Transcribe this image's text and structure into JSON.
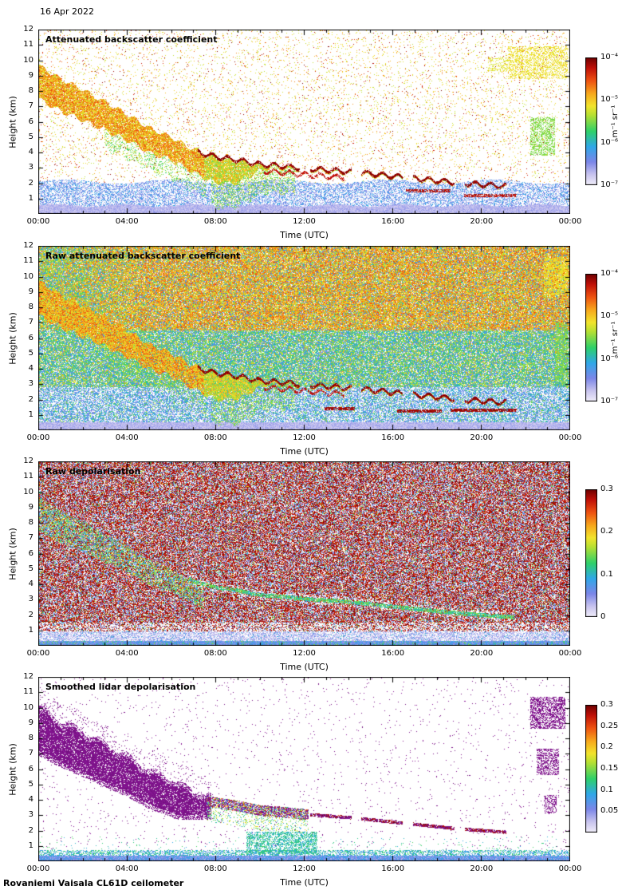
{
  "date_label": "16 Apr 2022",
  "footer": "Rovaniemi Vaisala CL61D ceilometer",
  "colors": {
    "background": "#ffffff",
    "axis": "#000000",
    "purple": "#8e169c",
    "purple_dark": "#5c0e66",
    "colormap": [
      {
        "v": 0.0,
        "c": "#efecf9"
      },
      {
        "v": 0.08,
        "c": "#c9c4ee"
      },
      {
        "v": 0.18,
        "c": "#7b86e8"
      },
      {
        "v": 0.3,
        "c": "#2fa8e8"
      },
      {
        "v": 0.42,
        "c": "#2ed06a"
      },
      {
        "v": 0.55,
        "c": "#b8e032"
      },
      {
        "v": 0.62,
        "c": "#f2e42c"
      },
      {
        "v": 0.72,
        "c": "#f7a61c"
      },
      {
        "v": 0.82,
        "c": "#ee5211"
      },
      {
        "v": 0.92,
        "c": "#c01008"
      },
      {
        "v": 1.0,
        "c": "#700000"
      }
    ]
  },
  "chart_data": [
    {
      "id": "attenuated_backscatter",
      "type": "heatmap",
      "title": "Attenuated backscatter coefficient",
      "xlabel": "Time (UTC)",
      "ylabel": "Height (km)",
      "x_ticks": [
        "00:00",
        "04:00",
        "08:00",
        "12:00",
        "16:00",
        "20:00",
        "00:00"
      ],
      "x_range_hours": [
        0,
        24
      ],
      "y_ticks": [
        1,
        2,
        3,
        4,
        5,
        6,
        7,
        8,
        9,
        10,
        11,
        12
      ],
      "y_range_km": [
        0,
        12
      ],
      "colorbar": {
        "scale": "log",
        "min": 1e-07,
        "max": 0.0001,
        "ticks": [
          {
            "value": 0.0001,
            "label": "10⁻⁴"
          },
          {
            "value": 1e-05,
            "label": "10⁻⁵"
          },
          {
            "value": 1e-06,
            "label": "10⁻⁶"
          },
          {
            "value": 1e-07,
            "label": "10⁻⁷"
          }
        ],
        "unit_label": "m⁻¹ sr⁻¹"
      },
      "features": {
        "track_t_end": 21.5,
        "cloud_top_track_km": [
          [
            0,
            9.7
          ],
          [
            1,
            8.8
          ],
          [
            2,
            8.1
          ],
          [
            3,
            7.3
          ],
          [
            4,
            6.5
          ],
          [
            5,
            5.6
          ],
          [
            6,
            5.0
          ],
          [
            7,
            4.2
          ],
          [
            8,
            3.8
          ],
          [
            9,
            3.6
          ],
          [
            10,
            3.3
          ],
          [
            11,
            3.2
          ],
          [
            12,
            3.05
          ],
          [
            13,
            2.95
          ],
          [
            14,
            2.85
          ],
          [
            15,
            2.7
          ],
          [
            16,
            2.55
          ],
          [
            17,
            2.4
          ],
          [
            18,
            2.25
          ],
          [
            19,
            2.1
          ],
          [
            20,
            2.0
          ],
          [
            21,
            1.9
          ],
          [
            21.5,
            1.85
          ]
        ],
        "cloud_thickness_km": [
          [
            0,
            2.2
          ],
          [
            2,
            2.0
          ],
          [
            4,
            1.7
          ],
          [
            6,
            1.5
          ],
          [
            7,
            1.5
          ],
          [
            8,
            1.8
          ],
          [
            9,
            1.6
          ],
          [
            9.5,
            1.0
          ],
          [
            10,
            0.45
          ],
          [
            10.5,
            0.25
          ],
          [
            24,
            0.18
          ]
        ],
        "surface_blue_layer_top_km": 2.1,
        "double_line": [
          10.2,
          13.8
        ],
        "patches": [
          {
            "t": [
              21.2,
              23.9
            ],
            "h": [
              8.8,
              10.9
            ],
            "v": 0.62,
            "p": 0.4
          },
          {
            "t": [
              20.3,
              21.2
            ],
            "h": [
              9.3,
              10.2
            ],
            "v": 0.6,
            "p": 0.3
          },
          {
            "t": [
              22.2,
              23.3
            ],
            "h": [
              3.8,
              6.3
            ],
            "v": 0.5,
            "p": 0.45
          },
          {
            "t": [
              16.6,
              18.6
            ],
            "h": [
              1.4,
              1.6
            ],
            "v": 0.93,
            "p": 0.7
          },
          {
            "t": [
              19.2,
              21.6
            ],
            "h": [
              1.1,
              1.3
            ],
            "v": 0.93,
            "p": 0.7
          }
        ]
      }
    },
    {
      "id": "raw_attenuated_backscatter",
      "type": "heatmap",
      "title": "Raw attenuated backscatter coefficient",
      "xlabel": "Time (UTC)",
      "ylabel": "Height (km)",
      "x_ticks": [
        "00:00",
        "04:00",
        "08:00",
        "12:00",
        "16:00",
        "20:00",
        "00:00"
      ],
      "x_range_hours": [
        0,
        24
      ],
      "y_ticks": [
        1,
        2,
        3,
        4,
        5,
        6,
        7,
        8,
        9,
        10,
        11,
        12
      ],
      "y_range_km": [
        0,
        12
      ],
      "colorbar": {
        "scale": "log",
        "min": 1e-07,
        "max": 0.0001,
        "ticks": [
          {
            "value": 0.0001,
            "label": "10⁻⁴"
          },
          {
            "value": 1e-05,
            "label": "10⁻⁵"
          },
          {
            "value": 1e-06,
            "label": "10⁻⁶"
          },
          {
            "value": 1e-07,
            "label": "10⁻⁷"
          }
        ],
        "unit_label": "m⁻¹ sr⁻¹"
      },
      "features": {
        "track_t_end": 21.5,
        "cloud_top_track_km": [
          [
            0,
            9.7
          ],
          [
            1,
            8.8
          ],
          [
            2,
            8.1
          ],
          [
            3,
            7.3
          ],
          [
            4,
            6.5
          ],
          [
            5,
            5.6
          ],
          [
            6,
            5.0
          ],
          [
            7,
            4.2
          ],
          [
            8,
            3.8
          ],
          [
            9,
            3.6
          ],
          [
            10,
            3.3
          ],
          [
            11,
            3.2
          ],
          [
            12,
            3.05
          ],
          [
            13,
            2.95
          ],
          [
            14,
            2.85
          ],
          [
            15,
            2.7
          ],
          [
            16,
            2.55
          ],
          [
            17,
            2.4
          ],
          [
            18,
            2.25
          ],
          [
            19,
            2.1
          ],
          [
            20,
            2.0
          ],
          [
            21,
            1.9
          ],
          [
            21.5,
            1.85
          ]
        ],
        "cloud_thickness_km": [
          [
            0,
            2.2
          ],
          [
            2,
            2.0
          ],
          [
            4,
            1.7
          ],
          [
            6,
            1.5
          ],
          [
            7,
            1.5
          ],
          [
            8,
            1.8
          ],
          [
            9,
            1.6
          ],
          [
            9.5,
            1.0
          ],
          [
            10,
            0.45
          ],
          [
            10.5,
            0.25
          ],
          [
            24,
            0.18
          ]
        ],
        "double_line": [
          10.2,
          13.8
        ],
        "patches": [
          {
            "t": [
              12.9,
              14.3
            ],
            "h": [
              1.3,
              1.5
            ],
            "v": 0.95,
            "p": 0.8
          },
          {
            "t": [
              16.2,
              18.2
            ],
            "h": [
              1.15,
              1.35
            ],
            "v": 0.95,
            "p": 0.8
          },
          {
            "t": [
              18.6,
              21.6
            ],
            "h": [
              1.2,
              1.4
            ],
            "v": 0.95,
            "p": 0.8
          },
          {
            "t": [
              23.3,
              23.9
            ],
            "h": [
              3.0,
              7.0
            ],
            "v": 0.5,
            "p": 0.5
          },
          {
            "t": [
              22.8,
              23.9
            ],
            "h": [
              8.8,
              11.2
            ],
            "v": 0.62,
            "p": 0.55
          }
        ]
      }
    },
    {
      "id": "raw_depolarisation",
      "type": "heatmap",
      "title": "Raw depolarisation",
      "xlabel": "Time (UTC)",
      "ylabel": "Height (km)",
      "x_ticks": [
        "00:00",
        "04:00",
        "08:00",
        "12:00",
        "16:00",
        "20:00",
        "00:00"
      ],
      "x_range_hours": [
        0,
        24
      ],
      "y_ticks": [
        1,
        2,
        3,
        4,
        5,
        6,
        7,
        8,
        9,
        10,
        11,
        12
      ],
      "y_range_km": [
        0,
        12
      ],
      "colorbar": {
        "scale": "linear",
        "min": 0,
        "max": 0.3,
        "ticks": [
          {
            "value": 0.3,
            "label": "0.3"
          },
          {
            "value": 0.2,
            "label": "0.2"
          },
          {
            "value": 0.1,
            "label": "0.1"
          },
          {
            "value": 0,
            "label": "0"
          }
        ]
      },
      "features": {
        "track_t_end": 21.5,
        "cloud_top_track_km": [
          [
            0,
            9.7
          ],
          [
            1,
            8.8
          ],
          [
            2,
            8.1
          ],
          [
            3,
            7.3
          ],
          [
            4,
            6.5
          ],
          [
            5,
            5.6
          ],
          [
            6,
            5.0
          ],
          [
            7,
            4.2
          ],
          [
            8,
            3.8
          ],
          [
            9,
            3.6
          ],
          [
            10,
            3.3
          ],
          [
            11,
            3.2
          ],
          [
            12,
            3.05
          ],
          [
            13,
            2.95
          ],
          [
            14,
            2.85
          ],
          [
            15,
            2.7
          ],
          [
            16,
            2.55
          ],
          [
            17,
            2.4
          ],
          [
            18,
            2.25
          ],
          [
            19,
            2.1
          ],
          [
            20,
            2.0
          ],
          [
            21,
            1.9
          ],
          [
            21.5,
            1.85
          ]
        ],
        "cloud_thickness_km": [
          [
            0,
            2.2
          ],
          [
            2,
            2.0
          ],
          [
            4,
            1.7
          ],
          [
            6,
            1.5
          ],
          [
            7,
            1.5
          ],
          [
            8,
            1.8
          ],
          [
            9,
            1.6
          ],
          [
            9.5,
            1.0
          ],
          [
            10,
            0.45
          ],
          [
            10.5,
            0.25
          ],
          [
            24,
            0.18
          ]
        ],
        "patches": []
      }
    },
    {
      "id": "smoothed_depolarisation",
      "type": "heatmap",
      "title": "Smoothed lidar depolarisation",
      "xlabel": "Time (UTC)",
      "ylabel": "Height (km)",
      "x_ticks": [
        "00:00",
        "04:00",
        "08:00",
        "12:00",
        "16:00",
        "20:00",
        "00:00"
      ],
      "x_range_hours": [
        0,
        24
      ],
      "y_ticks": [
        1,
        2,
        3,
        4,
        5,
        6,
        7,
        8,
        9,
        10,
        11,
        12
      ],
      "y_range_km": [
        0,
        12
      ],
      "colorbar": {
        "scale": "linear",
        "min": 0,
        "max": 0.3,
        "ticks": [
          {
            "value": 0.3,
            "label": "0.3"
          },
          {
            "value": 0.25,
            "label": "0.25"
          },
          {
            "value": 0.2,
            "label": "0.2"
          },
          {
            "value": 0.15,
            "label": "0.15"
          },
          {
            "value": 0.1,
            "label": "0.1"
          },
          {
            "value": 0.05,
            "label": "0.05"
          }
        ]
      },
      "features": {
        "track_t_end": 21.5,
        "cloud_top_track_km": [
          [
            0,
            9.7
          ],
          [
            1,
            8.8
          ],
          [
            2,
            8.1
          ],
          [
            3,
            7.3
          ],
          [
            4,
            6.5
          ],
          [
            5,
            5.6
          ],
          [
            6,
            5.0
          ],
          [
            7,
            4.2
          ],
          [
            8,
            3.8
          ],
          [
            9,
            3.6
          ],
          [
            10,
            3.3
          ],
          [
            11,
            3.2
          ],
          [
            12,
            3.05
          ],
          [
            13,
            2.95
          ],
          [
            14,
            2.85
          ],
          [
            15,
            2.7
          ],
          [
            16,
            2.55
          ],
          [
            17,
            2.4
          ],
          [
            18,
            2.25
          ],
          [
            19,
            2.1
          ],
          [
            20,
            2.0
          ],
          [
            21,
            1.9
          ],
          [
            21.5,
            1.85
          ]
        ],
        "cloud_thickness_km": [
          [
            0,
            2.2
          ],
          [
            2,
            2.0
          ],
          [
            4,
            1.7
          ],
          [
            6,
            1.5
          ],
          [
            7,
            1.5
          ],
          [
            8,
            1.8
          ],
          [
            9,
            1.6
          ],
          [
            9.5,
            1.0
          ],
          [
            10,
            0.45
          ],
          [
            10.5,
            0.25
          ],
          [
            24,
            0.18
          ]
        ],
        "patches": [
          {
            "t": [
              22.2,
              23.8
            ],
            "h": [
              8.6,
              10.7
            ],
            "purple": 1,
            "p": 0.55
          },
          {
            "t": [
              22.5,
              23.5
            ],
            "h": [
              5.6,
              7.3
            ],
            "purple": 1,
            "p": 0.45
          },
          {
            "t": [
              22.8,
              23.4
            ],
            "h": [
              3.1,
              4.3
            ],
            "purple": 1,
            "p": 0.4
          }
        ]
      }
    }
  ]
}
